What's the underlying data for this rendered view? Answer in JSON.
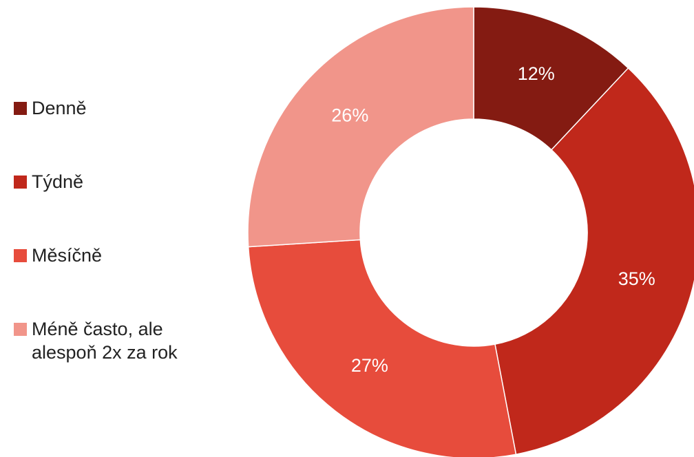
{
  "chart_data": {
    "type": "donut",
    "categories": [
      "Denně",
      "Týdně",
      "Měsíčně",
      "Méně často, ale alespoň 2x za rok"
    ],
    "values": [
      12,
      35,
      27,
      26
    ],
    "value_labels": [
      "12%",
      "35%",
      "27%",
      "26%"
    ],
    "colors": [
      "#841b12",
      "#c0281b",
      "#e74c3c",
      "#f1958a"
    ],
    "legend": "left"
  }
}
